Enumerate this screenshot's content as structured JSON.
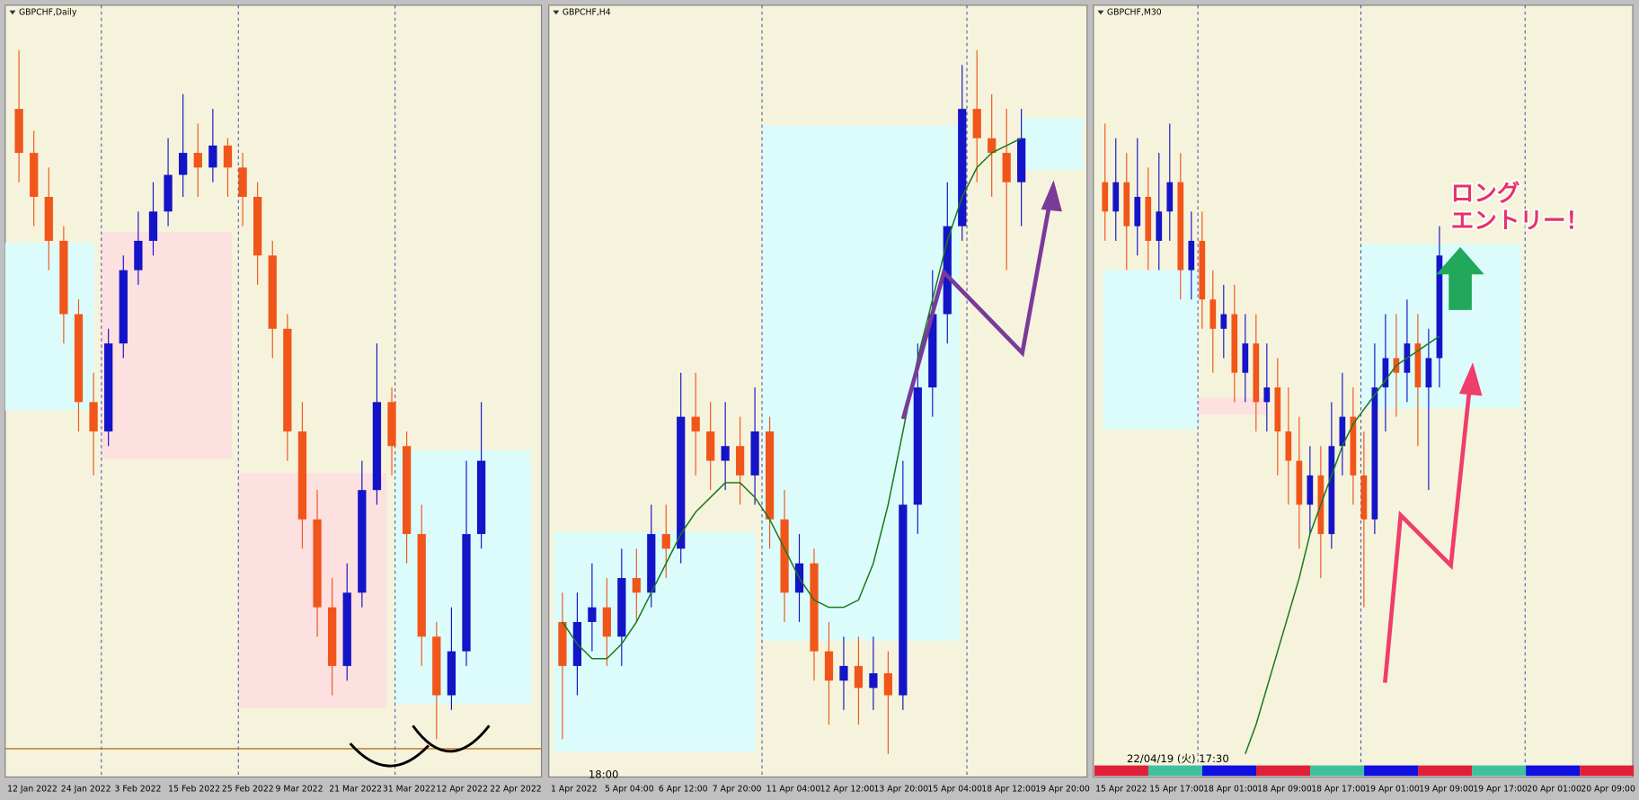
{
  "chart_data": [
    {
      "type": "candlestick",
      "title": "GBPCHF,Daily",
      "xtick_labels": [
        "12 Jan 2022",
        "24 Jan 2022",
        "3 Feb 2022",
        "15 Feb 2022",
        "25 Feb 2022",
        "9 Mar 2022",
        "21 Mar 2022",
        "31 Mar 2022",
        "12 Apr 2022",
        "22 Apr 2022"
      ],
      "open": [
        88,
        82,
        76,
        70,
        60,
        48,
        44,
        56,
        66,
        70,
        74,
        79,
        82,
        80,
        83,
        80,
        76,
        68,
        58,
        44,
        32,
        20,
        12,
        22,
        36,
        48,
        42,
        30,
        16,
        8,
        14,
        30
      ],
      "high": [
        96,
        85,
        80,
        72,
        62,
        52,
        58,
        68,
        74,
        78,
        84,
        90,
        86,
        88,
        84,
        82,
        78,
        70,
        60,
        48,
        36,
        24,
        26,
        40,
        56,
        50,
        44,
        34,
        18,
        20,
        40,
        48
      ],
      "low": [
        78,
        72,
        66,
        56,
        44,
        38,
        42,
        54,
        64,
        68,
        72,
        76,
        76,
        78,
        76,
        72,
        64,
        54,
        40,
        28,
        16,
        8,
        10,
        20,
        34,
        38,
        26,
        12,
        2,
        6,
        12,
        28
      ],
      "close": [
        82,
        76,
        70,
        60,
        48,
        44,
        56,
        66,
        70,
        74,
        79,
        82,
        80,
        83,
        80,
        76,
        68,
        58,
        44,
        32,
        20,
        12,
        22,
        36,
        48,
        42,
        30,
        16,
        8,
        14,
        30,
        40
      ],
      "up_color": "#1414c8",
      "down_color": "#f0561a",
      "ylim": [
        0,
        100
      ]
    },
    {
      "type": "candlestick",
      "title": "GBPCHF,H4",
      "xtick_labels": [
        "1 Apr 2022",
        "5 Apr 04:00",
        "6 Apr 12:00",
        "7 Apr 20:00",
        "11 Apr 04:00",
        "12 Apr 12:00",
        "13 Apr 20:00",
        "15 Apr 04:00",
        "18 Apr 12:00",
        "19 Apr 20:00"
      ],
      "open": [
        18,
        12,
        18,
        20,
        16,
        24,
        22,
        30,
        28,
        46,
        44,
        40,
        42,
        38,
        44,
        32,
        22,
        26,
        14,
        10,
        12,
        9,
        11,
        8,
        34,
        50,
        60,
        72,
        88,
        84,
        82,
        78
      ],
      "high": [
        22,
        22,
        26,
        24,
        28,
        28,
        34,
        34,
        52,
        52,
        48,
        48,
        46,
        50,
        46,
        36,
        30,
        28,
        18,
        16,
        16,
        16,
        14,
        40,
        56,
        66,
        78,
        94,
        96,
        90,
        88,
        88
      ],
      "low": [
        2,
        8,
        14,
        12,
        12,
        18,
        20,
        24,
        26,
        38,
        36,
        36,
        34,
        34,
        28,
        18,
        18,
        10,
        4,
        6,
        4,
        6,
        0,
        6,
        30,
        46,
        56,
        70,
        78,
        76,
        66,
        72
      ],
      "close": [
        12,
        18,
        20,
        16,
        24,
        22,
        30,
        28,
        46,
        44,
        40,
        42,
        38,
        44,
        32,
        22,
        26,
        14,
        10,
        12,
        9,
        11,
        8,
        34,
        50,
        60,
        72,
        88,
        84,
        82,
        78,
        84
      ],
      "ma": [
        18,
        15,
        13,
        13,
        15,
        18,
        22,
        26,
        30,
        33,
        35,
        37,
        37,
        35,
        32,
        28,
        24,
        21,
        20,
        20,
        21,
        26,
        34,
        44,
        54,
        62,
        70,
        76,
        80,
        82,
        83,
        84
      ],
      "ma_color": "#1a7a1a",
      "up_color": "#1414c8",
      "down_color": "#f0561a",
      "ylim": [
        0,
        100
      ],
      "annotations": [
        "18:00"
      ]
    },
    {
      "type": "candlestick",
      "title": "GBPCHF,M30",
      "xtick_labels": [
        "15 Apr 2022",
        "15 Apr 17:00",
        "18 Apr 01:00",
        "18 Apr 09:00",
        "18 Apr 17:00",
        "19 Apr 01:00",
        "19 Apr 09:00",
        "19 Apr 17:00",
        "20 Apr 01:00",
        "20 Apr 09:00"
      ],
      "open": [
        78,
        74,
        78,
        72,
        76,
        70,
        74,
        78,
        66,
        70,
        62,
        58,
        60,
        52,
        56,
        48,
        50,
        44,
        40,
        34,
        38,
        30,
        42,
        46,
        38,
        32,
        50,
        54,
        52,
        56,
        50,
        54
      ],
      "high": [
        86,
        84,
        82,
        84,
        80,
        82,
        86,
        82,
        74,
        74,
        66,
        64,
        64,
        60,
        60,
        56,
        54,
        50,
        46,
        42,
        42,
        48,
        52,
        50,
        44,
        56,
        60,
        60,
        62,
        60,
        58,
        72
      ],
      "low": [
        70,
        70,
        66,
        68,
        66,
        66,
        70,
        62,
        62,
        58,
        52,
        54,
        48,
        48,
        44,
        44,
        38,
        34,
        28,
        30,
        24,
        28,
        38,
        34,
        20,
        30,
        44,
        46,
        48,
        42,
        36,
        50
      ],
      "close": [
        74,
        78,
        72,
        76,
        70,
        74,
        78,
        66,
        70,
        62,
        58,
        60,
        52,
        56,
        48,
        50,
        44,
        40,
        34,
        38,
        30,
        42,
        46,
        38,
        32,
        50,
        54,
        52,
        56,
        50,
        54,
        68
      ],
      "ma": [
        null,
        null,
        null,
        null,
        null,
        null,
        null,
        null,
        null,
        null,
        null,
        null,
        null,
        0,
        4,
        9,
        14,
        19,
        24,
        30,
        34,
        38,
        42,
        45,
        47,
        49,
        51,
        53,
        54,
        55,
        56,
        57
      ],
      "ma_color": "#1a7a1a",
      "up_color": "#1414c8",
      "down_color": "#f0561a",
      "ylim": [
        0,
        100
      ],
      "annotations": [
        "22/04/19 (火) 17:30",
        "ロング",
        "エントリー！"
      ]
    }
  ]
}
